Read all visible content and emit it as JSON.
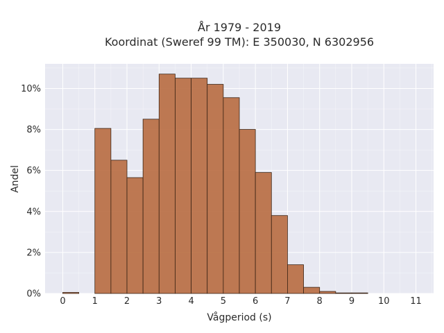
{
  "chart_data": {
    "type": "bar",
    "title_line1": "År 1979 - 2019",
    "title_line2": "Koordinat (Sweref 99 TM): E 350030, N 6302956",
    "xlabel": "Vågperiod (s)",
    "ylabel": "Andel",
    "bin_width": 0.5,
    "bin_starts": [
      0,
      0.5,
      1,
      1.5,
      2,
      2.5,
      3,
      3.5,
      4,
      4.5,
      5,
      5.5,
      6,
      6.5,
      7,
      7.5,
      8,
      8.5,
      9,
      9.5,
      10,
      10.5,
      11
    ],
    "values": [
      0.05,
      0.0,
      8.05,
      6.5,
      5.65,
      8.5,
      10.7,
      10.5,
      10.5,
      10.2,
      9.55,
      8.0,
      5.9,
      3.8,
      1.4,
      0.3,
      0.1,
      0.02,
      0.01,
      0,
      0,
      0,
      0
    ],
    "x_ticks": [
      "0",
      "1",
      "2",
      "3",
      "4",
      "5",
      "6",
      "7",
      "8",
      "9",
      "10",
      "11"
    ],
    "y_ticks": [
      "0%",
      "2%",
      "4%",
      "6%",
      "8%",
      "10%"
    ],
    "xlim": [
      -0.55,
      11.55
    ],
    "ylim": [
      0,
      11.2
    ],
    "grid": true,
    "colors": {
      "bar": "#b86b40",
      "edge": "#3a2416",
      "plot_bg": "#e8e9f2",
      "grid": "#ffffff"
    }
  }
}
